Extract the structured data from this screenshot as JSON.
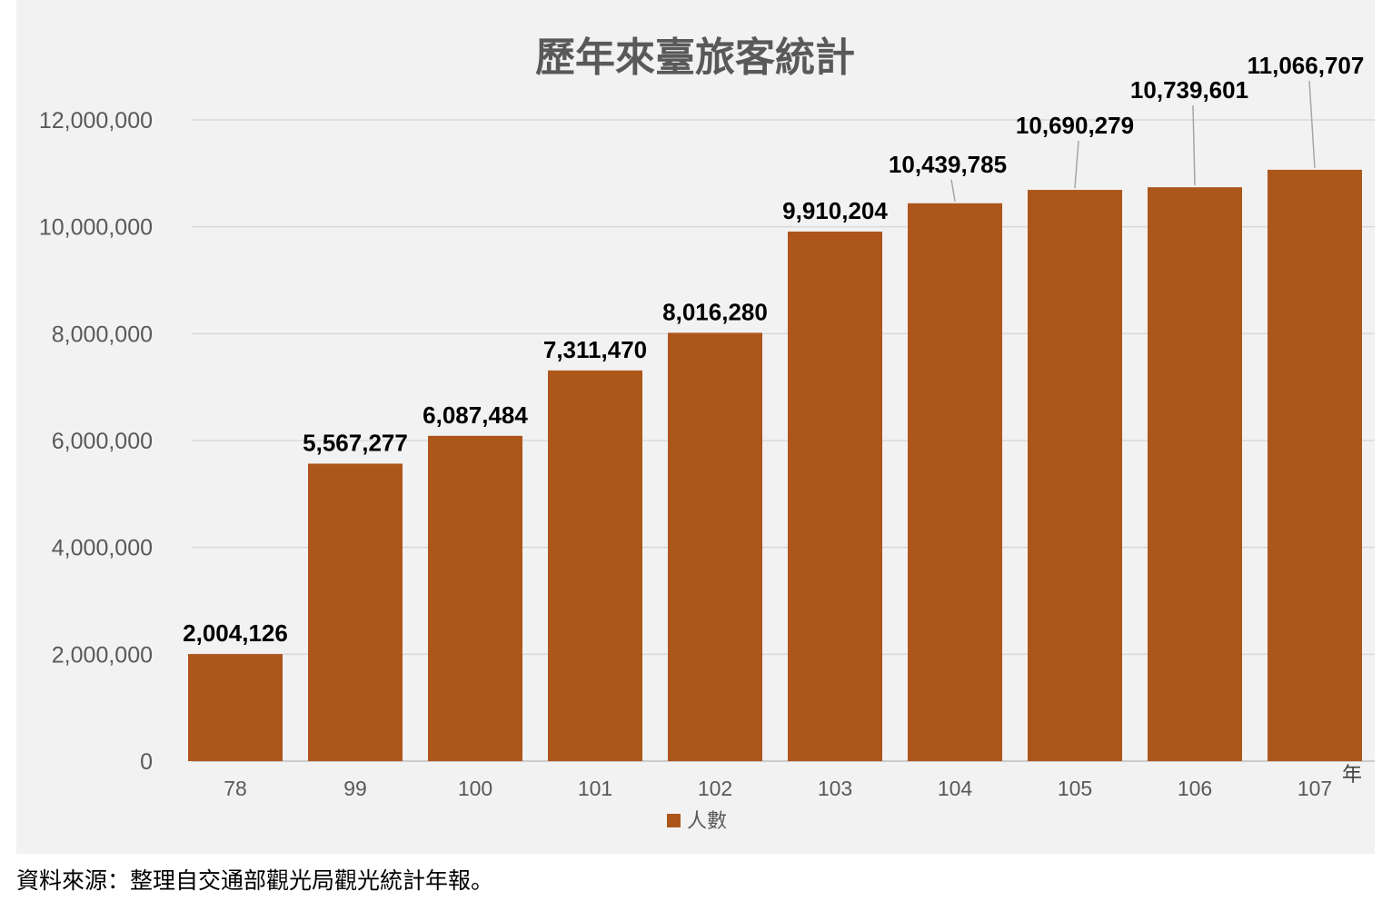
{
  "chart_data": {
    "type": "bar",
    "title": "歷年來臺旅客統計",
    "x_unit": "年",
    "categories": [
      "78",
      "99",
      "100",
      "101",
      "102",
      "103",
      "104",
      "105",
      "106",
      "107"
    ],
    "series": [
      {
        "name": "人數",
        "color": "#ad561c",
        "values": [
          2004126,
          5567277,
          6087484,
          7311470,
          8016280,
          9910204,
          10439785,
          10690279,
          10739601,
          11066707
        ],
        "labels": [
          "2,004,126",
          "5,567,277",
          "6,087,484",
          "7,311,470",
          "8,016,280",
          "9,910,204",
          "10,439,785",
          "10,690,279",
          "10,739,601",
          "11,066,707"
        ]
      }
    ],
    "ylim": [
      0,
      12000000
    ],
    "y_ticks": [
      0,
      2000000,
      4000000,
      6000000,
      8000000,
      10000000,
      12000000
    ],
    "y_tick_labels": [
      "0",
      "2,000,000",
      "4,000,000",
      "6,000,000",
      "8,000,000",
      "10,000,000",
      "12,000,000"
    ],
    "grid": true,
    "legend_position": "bottom",
    "background": "#f2f2f2"
  },
  "source_note": "資料來源：整理自交通部觀光局觀光統計年報。"
}
